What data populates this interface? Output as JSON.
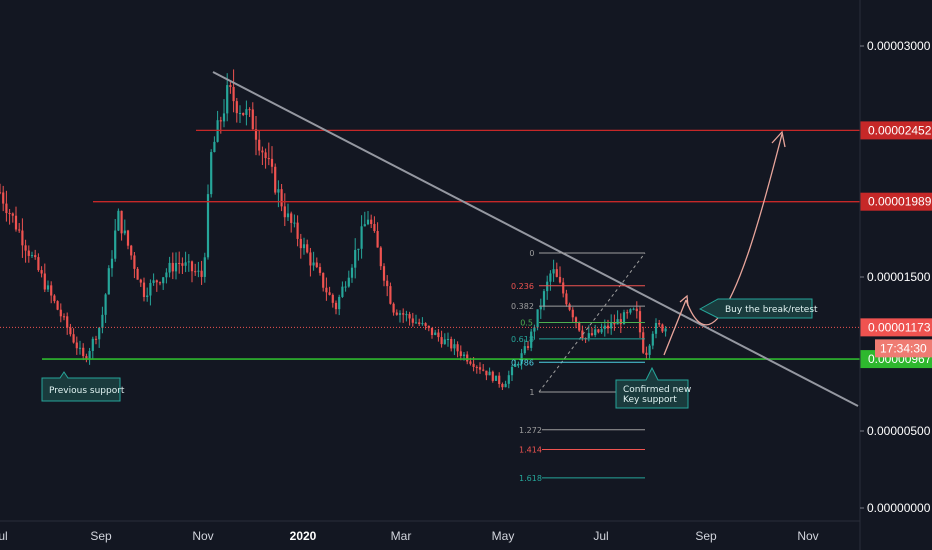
{
  "chart_data": {
    "type": "candlestick",
    "title": "",
    "y_scale": "linear",
    "ylim": [
      0,
      3.2e-06
    ],
    "y_ticks": [
      "0.00003000",
      "0.00001500",
      "0.00000500",
      "0.00000000"
    ],
    "x_ticks": [
      "Jul",
      "Sep",
      "Nov",
      "2020",
      "Mar",
      "May",
      "Jul",
      "Sep",
      "Nov"
    ],
    "bold_x_tick": "2020",
    "colors": {
      "up": "#26a69a",
      "down": "#ef5350",
      "resistance": "#c62828",
      "support": "#2eb82e",
      "trend": "#9598a1",
      "arrow": "#e8a59b"
    },
    "price_path": [
      {
        "x": "Jul",
        "y": 2.05e-05
      },
      {
        "x": "Aug",
        "y": 1.38e-05
      },
      {
        "x": "Aug 20",
        "y": 9.6e-06
      },
      {
        "x": "Sep",
        "y": 1.2e-05
      },
      {
        "x": "Sep 10",
        "y": 1.9e-05
      },
      {
        "x": "Sep 25",
        "y": 1.4e-05
      },
      {
        "x": "Oct 15",
        "y": 1.6e-05
      },
      {
        "x": "Oct 30",
        "y": 1.5e-05
      },
      {
        "x": "Nov 5",
        "y": 2.3e-05
      },
      {
        "x": "Nov 15",
        "y": 2.7e-05
      },
      {
        "x": "Dec",
        "y": 2.5e-05
      },
      {
        "x": "Dec 20",
        "y": 1.9e-05
      },
      {
        "x": "2020",
        "y": 1.7e-05
      },
      {
        "x": "Jan 20",
        "y": 1.3e-05
      },
      {
        "x": "Feb 10",
        "y": 1.9e-05
      },
      {
        "x": "Feb 25",
        "y": 1.3e-05
      },
      {
        "x": "Mar 10",
        "y": 1.2e-05
      },
      {
        "x": "Apr",
        "y": 1.05e-05
      },
      {
        "x": "May",
        "y": 8e-06
      },
      {
        "x": "May 15",
        "y": 1.05e-05
      },
      {
        "x": "Jun",
        "y": 1.55e-05
      },
      {
        "x": "Jun 20",
        "y": 1.1e-05
      },
      {
        "x": "Jul",
        "y": 1.15e-05
      },
      {
        "x": "Jul 20",
        "y": 1.28e-05
      },
      {
        "x": "Jul 25",
        "y": 9.8e-06
      },
      {
        "x": "Aug",
        "y": 1.173e-05
      }
    ],
    "horizontal_levels": [
      {
        "name": "resistance-1",
        "value": 2.452e-05,
        "label": "0.00002452",
        "color": "#c62828"
      },
      {
        "name": "resistance-2",
        "value": 1.989e-05,
        "label": "0.00001989",
        "color": "#c62828"
      },
      {
        "name": "current-price",
        "value": 1.173e-05,
        "label": "0.00001173",
        "color": "#ef5350"
      },
      {
        "name": "support",
        "value": 9.67e-06,
        "label": "0.00000967",
        "color": "#2eb82e"
      }
    ],
    "countdown": "17:34:30",
    "fibonacci": {
      "high": 1.66e-05,
      "low": 7.8e-06,
      "levels": [
        {
          "ratio": 0,
          "label": "0",
          "color": "#9e9e9e"
        },
        {
          "ratio": 0.236,
          "label": "0.236",
          "color": "#ef5350"
        },
        {
          "ratio": 0.382,
          "label": "0.382",
          "color": "#9e9e9e"
        },
        {
          "ratio": 0.5,
          "label": "0.5",
          "color": "#4caf50"
        },
        {
          "ratio": 0.618,
          "label": "0.618",
          "color": "#26a69a"
        },
        {
          "ratio": 0.786,
          "label": "0.786",
          "color": "#4dd0e1"
        },
        {
          "ratio": 1,
          "label": "1",
          "color": "#9e9e9e"
        },
        {
          "ratio": 1.272,
          "label": "1.272",
          "color": "#9e9e9e"
        },
        {
          "ratio": 1.414,
          "label": "1.414",
          "color": "#ef5350"
        },
        {
          "ratio": 1.618,
          "label": "1.618",
          "color": "#26a69a"
        }
      ]
    },
    "annotations": [
      {
        "name": "previous-support",
        "text": [
          "Previous support"
        ]
      },
      {
        "name": "confirmed-support",
        "text": [
          "Confirmed new",
          "Key support"
        ]
      },
      {
        "name": "buy-break",
        "text": [
          "Buy the break/retest"
        ]
      }
    ]
  }
}
